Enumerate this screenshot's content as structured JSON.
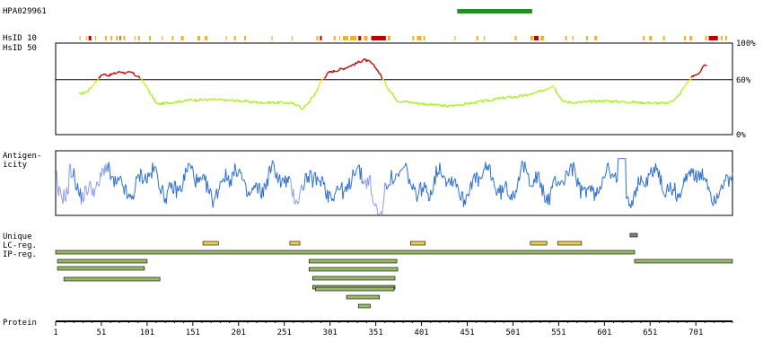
{
  "antibody_id": "HPA029961",
  "labels": {
    "hsid10": "HsID 10",
    "hsid50": "HsID 50",
    "antigenicity_1": "Antigen-",
    "antigenicity_2": "icity",
    "unique": "Unique",
    "lc_reg": "LC-reg.",
    "ip_reg": "IP-reg.",
    "protein": "Protein"
  },
  "colors": {
    "high": "#c00000",
    "mid": "#f0e020",
    "low": "#a8ee20",
    "antibody_bar": "#2a8a2a",
    "antigen_main": "#2f6fcf",
    "antigen_light": "#8c9ce8",
    "ip_bar": "#98ba68",
    "lc_bar": "#f0d050",
    "unique_bar": "#808080",
    "stripe_orange": "#f0b030",
    "stripe_red": "#c00000"
  },
  "chart_data": [
    {
      "type": "line",
      "name": "HsID identity",
      "xlim": [
        1,
        741
      ],
      "ylim": [
        0,
        100
      ],
      "ytick_labels": [
        "100%",
        "60%",
        "0%"
      ],
      "threshold": 60,
      "antibody_range": [
        440,
        522
      ],
      "profile_points": [
        [
          27,
          44
        ],
        [
          35,
          47
        ],
        [
          40,
          52
        ],
        [
          45,
          58
        ],
        [
          52,
          66
        ],
        [
          60,
          65
        ],
        [
          66,
          67
        ],
        [
          72,
          69
        ],
        [
          78,
          67
        ],
        [
          84,
          68
        ],
        [
          88,
          65
        ],
        [
          92,
          63
        ],
        [
          97,
          58
        ],
        [
          105,
          44
        ],
        [
          112,
          33
        ],
        [
          125,
          35
        ],
        [
          150,
          38
        ],
        [
          175,
          38
        ],
        [
          200,
          37
        ],
        [
          225,
          35
        ],
        [
          250,
          35
        ],
        [
          265,
          33
        ],
        [
          270,
          28
        ],
        [
          276,
          33
        ],
        [
          285,
          45
        ],
        [
          292,
          60
        ],
        [
          300,
          68
        ],
        [
          315,
          72
        ],
        [
          330,
          78
        ],
        [
          338,
          82
        ],
        [
          345,
          79
        ],
        [
          352,
          72
        ],
        [
          358,
          62
        ],
        [
          365,
          50
        ],
        [
          375,
          37
        ],
        [
          400,
          34
        ],
        [
          430,
          31
        ],
        [
          460,
          35
        ],
        [
          490,
          40
        ],
        [
          510,
          42
        ],
        [
          525,
          45
        ],
        [
          535,
          49
        ],
        [
          545,
          54
        ],
        [
          550,
          45
        ],
        [
          556,
          36
        ],
        [
          570,
          35
        ],
        [
          600,
          37
        ],
        [
          640,
          35
        ],
        [
          670,
          34
        ],
        [
          682,
          42
        ],
        [
          690,
          55
        ],
        [
          697,
          63
        ],
        [
          705,
          68
        ],
        [
          710,
          75
        ],
        [
          713,
          74
        ]
      ],
      "hsid10_stripes": [
        [
          27,
          28,
          "o"
        ],
        [
          34,
          35,
          "o"
        ],
        [
          37,
          40,
          "r"
        ],
        [
          44,
          45,
          "o"
        ],
        [
          55,
          57,
          "o"
        ],
        [
          61,
          63,
          "o"
        ],
        [
          67,
          69,
          "o"
        ],
        [
          71,
          72,
          "r"
        ],
        [
          75,
          77,
          "o"
        ],
        [
          87,
          88,
          "o"
        ],
        [
          91,
          93,
          "o"
        ],
        [
          103,
          105,
          "o"
        ],
        [
          117,
          118,
          "o"
        ],
        [
          128,
          130,
          "o"
        ],
        [
          138,
          141,
          "o"
        ],
        [
          156,
          159,
          "o"
        ],
        [
          164,
          167,
          "o"
        ],
        [
          187,
          188,
          "o"
        ],
        [
          196,
          198,
          "o"
        ],
        [
          207,
          209,
          "o"
        ],
        [
          237,
          238,
          "o"
        ],
        [
          259,
          260,
          "o"
        ],
        [
          286,
          288,
          "o"
        ],
        [
          290,
          292,
          "r"
        ],
        [
          305,
          307,
          "o"
        ],
        [
          311,
          312,
          "o"
        ],
        [
          315,
          321,
          "o"
        ],
        [
          323,
          330,
          "o"
        ],
        [
          332,
          335,
          "r"
        ],
        [
          338,
          342,
          "o"
        ],
        [
          346,
          362,
          "r"
        ],
        [
          364,
          367,
          "o"
        ],
        [
          391,
          393,
          "o"
        ],
        [
          396,
          401,
          "o"
        ],
        [
          403,
          405,
          "o"
        ],
        [
          437,
          438,
          "o"
        ],
        [
          461,
          463,
          "o"
        ],
        [
          469,
          470,
          "o"
        ],
        [
          503,
          505,
          "o"
        ],
        [
          520,
          523,
          "o"
        ],
        [
          524,
          529,
          "r"
        ],
        [
          531,
          535,
          "o"
        ],
        [
          558,
          560,
          "o"
        ],
        [
          566,
          567,
          "o"
        ],
        [
          581,
          583,
          "o"
        ],
        [
          590,
          593,
          "o"
        ],
        [
          643,
          645,
          "o"
        ],
        [
          650,
          653,
          "o"
        ],
        [
          665,
          667,
          "o"
        ],
        [
          688,
          690,
          "o"
        ],
        [
          694,
          697,
          "o"
        ],
        [
          711,
          713,
          "o"
        ],
        [
          715,
          725,
          "r"
        ],
        [
          728,
          730,
          "o"
        ],
        [
          733,
          735,
          "o"
        ]
      ]
    },
    {
      "type": "line",
      "name": "Antigenicity",
      "xlim": [
        1,
        741
      ]
    },
    {
      "type": "table",
      "name": "Regions",
      "xlim": [
        1,
        741
      ],
      "x_ticks": [
        1,
        51,
        101,
        151,
        201,
        251,
        301,
        351,
        401,
        451,
        501,
        551,
        601,
        651,
        701
      ],
      "unique": [
        [
          629,
          637
        ]
      ],
      "lc_reg": [
        [
          162,
          179
        ],
        [
          257,
          268
        ],
        [
          389,
          405
        ],
        [
          520,
          538
        ],
        [
          550,
          576
        ]
      ],
      "ip_reg": [
        [
          1,
          634
        ],
        [
          634,
          741
        ],
        [
          3,
          101
        ],
        [
          3,
          98
        ],
        [
          10,
          115
        ],
        [
          278,
          374
        ],
        [
          278,
          375
        ],
        [
          282,
          372
        ],
        [
          282,
          372
        ],
        [
          285,
          371
        ],
        [
          319,
          355
        ],
        [
          332,
          345
        ]
      ]
    }
  ]
}
